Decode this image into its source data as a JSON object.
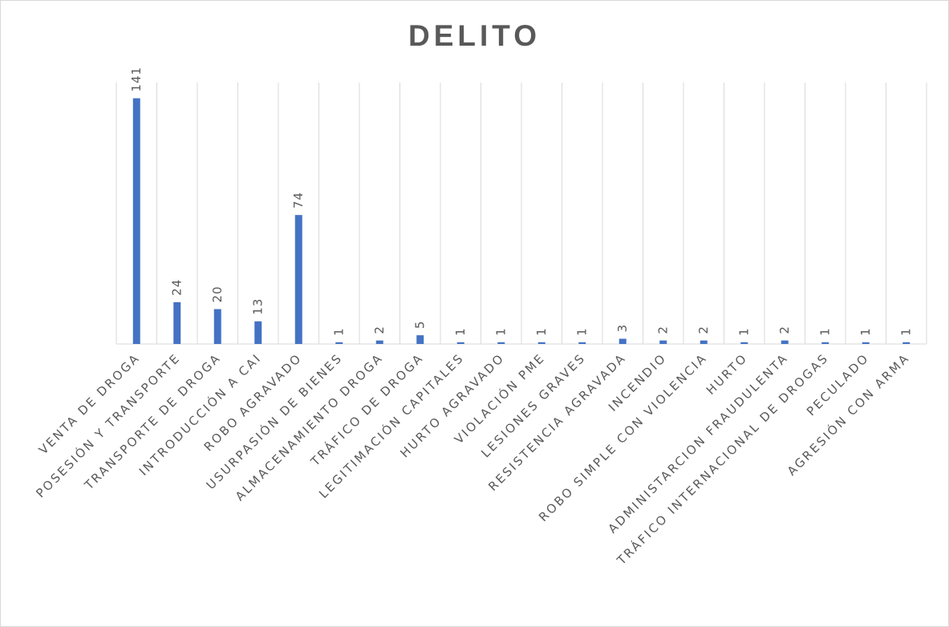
{
  "chart_data": {
    "type": "bar",
    "title": "DELITO",
    "xlabel": "",
    "ylabel": "",
    "categories": [
      "VENTA DE DROGA",
      "POSESIÓN Y TRANSPORTE",
      "TRANSPORTE DE DROGA",
      "INTRODUCCIÓN A CAI",
      "ROBO AGRAVADO",
      "USURPASIÓN DE BIENES",
      "ALMACENAMIENTO DROGA",
      "TRÁFICO DE DROGA",
      "LEGITIMACIÓN CAPITALES",
      "HURTO AGRAVADO",
      "VIOLACIÓN PME",
      "LESIONES GRAVES",
      "RESISTENCIA AGRAVADA",
      "INCENDIO",
      "ROBO SIMPLE CON VIOLENCIA",
      "HURTO",
      "ADMINISTARCION FRAUDULENTA",
      "TRÁFICO INTERNACIONAL DE DROGAS",
      "PECULADO",
      "AGRESIÓN CON ARMA"
    ],
    "values": [
      141,
      24,
      20,
      13,
      74,
      1,
      2,
      5,
      1,
      1,
      1,
      1,
      3,
      2,
      2,
      1,
      2,
      1,
      1,
      1
    ],
    "ylim": [
      0,
      150
    ],
    "data_labels": true,
    "grid": "vertical",
    "legend": "none",
    "colors": {
      "bar": "#4472c4",
      "grid": "#d9d9d9",
      "text": "#595959"
    }
  }
}
